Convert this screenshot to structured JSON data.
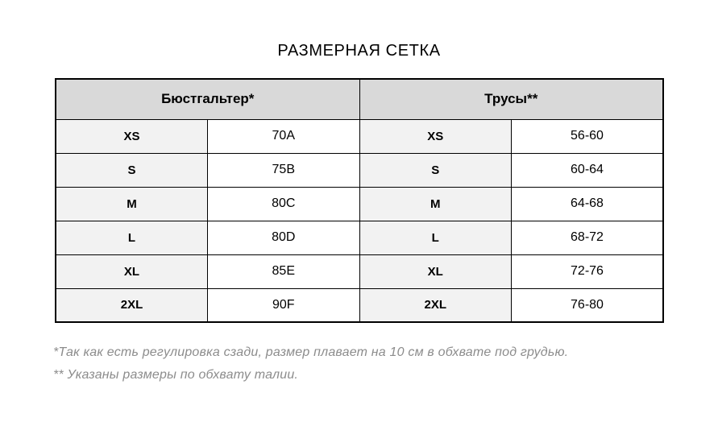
{
  "title": "РАЗМЕРНАЯ СЕТКА",
  "table": {
    "groups": [
      {
        "header": "Бюстгальтер*"
      },
      {
        "header": "Трусы**"
      }
    ],
    "rows": [
      {
        "bra_size": "XS",
        "bra_value": "70A",
        "panty_size": "XS",
        "panty_value": "56-60"
      },
      {
        "bra_size": "S",
        "bra_value": "75B",
        "panty_size": "S",
        "panty_value": "60-64"
      },
      {
        "bra_size": "M",
        "bra_value": "80C",
        "panty_size": "M",
        "panty_value": "64-68"
      },
      {
        "bra_size": "L",
        "bra_value": "80D",
        "panty_size": "L",
        "panty_value": "68-72"
      },
      {
        "bra_size": "XL",
        "bra_value": "85E",
        "panty_size": "XL",
        "panty_value": "72-76"
      },
      {
        "bra_size": "2XL",
        "bra_value": "90F",
        "panty_size": "2XL",
        "panty_value": "76-80"
      }
    ]
  },
  "footnotes": [
    "*Так как есть регулировка сзади, размер плавает на 10 см в обхвате под грудью.",
    "** Указаны размеры по обхвату талии."
  ],
  "colors": {
    "header_bg": "#d9d9d9",
    "size_column_bg": "#f2f2f2",
    "value_column_bg": "#ffffff",
    "border": "#000000",
    "footnote_text": "#8c8c8c"
  }
}
